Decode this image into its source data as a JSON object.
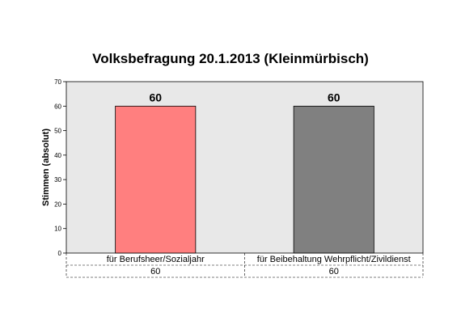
{
  "chart_data": {
    "type": "bar",
    "title": "Volksbefragung 20.1.2013 (Kleinmürbisch)",
    "ylabel": "Stimmen (absolut)",
    "xlabel": "",
    "ylim": [
      0,
      70
    ],
    "yticks": [
      0,
      10,
      20,
      30,
      40,
      50,
      60,
      70
    ],
    "grid": false,
    "legend": "none",
    "categories": [
      "für Berufsheer/Sozialjahr",
      "für Beibehaltung Wehrpflicht/Zivildienst"
    ],
    "values": [
      60,
      60
    ],
    "data_labels": [
      "60",
      "60"
    ],
    "table_values": [
      "60",
      "60"
    ],
    "colors": [
      "#ff7f7f",
      "#808080"
    ],
    "plot_background": "#e8e8e8"
  }
}
